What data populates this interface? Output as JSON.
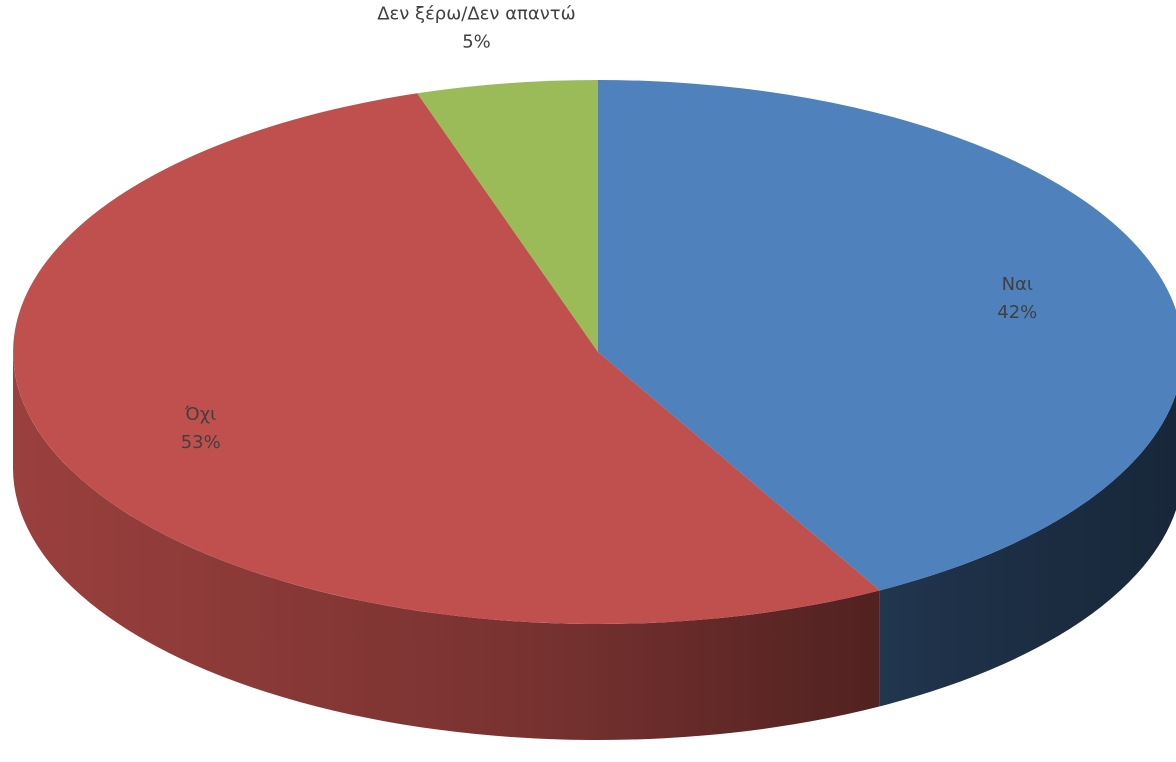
{
  "chart_data": {
    "type": "pie",
    "style": "3d",
    "title": "",
    "categories": [
      "Ναι",
      "Όχι",
      "Δεν ξέρω/Δεν απαντώ"
    ],
    "values": [
      42,
      53,
      5
    ],
    "value_labels": [
      "42%",
      "53%",
      "5%"
    ],
    "colors": [
      "#4F81BD",
      "#C0504D",
      "#9BBB59"
    ],
    "start_angle": "12 o'clock",
    "direction": "clockwise",
    "legend": "none"
  }
}
